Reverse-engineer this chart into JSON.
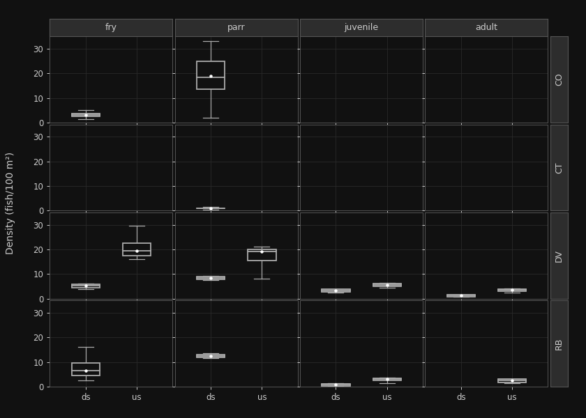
{
  "col_labels": [
    "fry",
    "parr",
    "juvenile",
    "adult"
  ],
  "row_labels": [
    "CO",
    "CT",
    "DV",
    "RB"
  ],
  "background_color": "#111111",
  "panel_color": "#111111",
  "strip_color": "#2d2d2d",
  "strip_border_color": "#555555",
  "text_color": "#cccccc",
  "box_color": "#aaaaaa",
  "grid_color": "#2a2a2a",
  "border_color": "#555555",
  "xlabel_vals": [
    "ds",
    "us"
  ],
  "ylabel": "Density (fish/100 m²)",
  "ylim": [
    0,
    35
  ],
  "yticks": [
    0,
    10,
    20,
    30
  ],
  "boxplot_data": {
    "CO": {
      "fry": {
        "ds": {
          "q1": 2.5,
          "median": 3.0,
          "q3": 3.8,
          "whislo": 1.5,
          "whishi": 5.0,
          "mean": 3.0
        },
        "us": null
      },
      "parr": {
        "ds": {
          "q1": 13.5,
          "median": 18.5,
          "q3": 25.0,
          "whislo": 2.0,
          "whishi": 33.0,
          "mean": 19.0
        },
        "us": null
      },
      "juvenile": {
        "ds": null,
        "us": null
      },
      "adult": {
        "ds": null,
        "us": null
      }
    },
    "CT": {
      "fry": {
        "ds": null,
        "us": null
      },
      "parr": {
        "ds": {
          "q1": 0.9,
          "median": 1.0,
          "q3": 1.1,
          "whislo": 0.5,
          "whishi": 1.5,
          "mean": 1.0
        },
        "us": null
      },
      "juvenile": {
        "ds": null,
        "us": null
      },
      "adult": {
        "ds": null,
        "us": null
      }
    },
    "DV": {
      "fry": {
        "ds": {
          "q1": 4.5,
          "median": 5.2,
          "q3": 5.8,
          "whislo": 3.8,
          "whishi": 6.2,
          "mean": 5.2
        },
        "us": {
          "q1": 17.5,
          "median": 19.5,
          "q3": 22.5,
          "whislo": 16.0,
          "whishi": 29.5,
          "mean": 19.5
        }
      },
      "parr": {
        "ds": {
          "q1": 7.8,
          "median": 8.5,
          "q3": 9.0,
          "whislo": 7.5,
          "whishi": 9.2,
          "mean": 8.5
        },
        "us": {
          "q1": 15.5,
          "median": 19.0,
          "q3": 20.0,
          "whislo": 8.0,
          "whishi": 21.0,
          "mean": 19.0
        }
      },
      "juvenile": {
        "ds": {
          "q1": 2.8,
          "median": 3.2,
          "q3": 3.8,
          "whislo": 2.5,
          "whishi": 3.9,
          "mean": 3.2
        },
        "us": {
          "q1": 5.0,
          "median": 5.5,
          "q3": 6.2,
          "whislo": 4.5,
          "whishi": 6.5,
          "mean": 5.5
        }
      },
      "adult": {
        "ds": {
          "q1": 0.9,
          "median": 1.2,
          "q3": 1.6,
          "whislo": 0.7,
          "whishi": 1.7,
          "mean": 1.2
        },
        "us": {
          "q1": 3.0,
          "median": 3.5,
          "q3": 4.0,
          "whislo": 2.5,
          "whishi": 4.2,
          "mean": 3.5
        }
      }
    },
    "RB": {
      "fry": {
        "ds": {
          "q1": 4.5,
          "median": 6.5,
          "q3": 9.5,
          "whislo": 2.5,
          "whishi": 16.0,
          "mean": 6.5
        },
        "us": null
      },
      "parr": {
        "ds": {
          "q1": 11.8,
          "median": 12.5,
          "q3": 13.0,
          "whislo": 11.5,
          "whishi": 13.5,
          "mean": 12.5
        },
        "us": null
      },
      "juvenile": {
        "ds": {
          "q1": 0.4,
          "median": 0.8,
          "q3": 1.2,
          "whislo": 0.2,
          "whishi": 1.5,
          "mean": 0.8
        },
        "us": {
          "q1": 2.5,
          "median": 3.0,
          "q3": 3.5,
          "whislo": 1.5,
          "whishi": 3.8,
          "mean": 3.0
        }
      },
      "adult": {
        "ds": null,
        "us": {
          "q1": 1.8,
          "median": 2.5,
          "q3": 3.0,
          "whislo": 1.5,
          "whishi": 3.2,
          "mean": 2.5
        }
      }
    }
  }
}
